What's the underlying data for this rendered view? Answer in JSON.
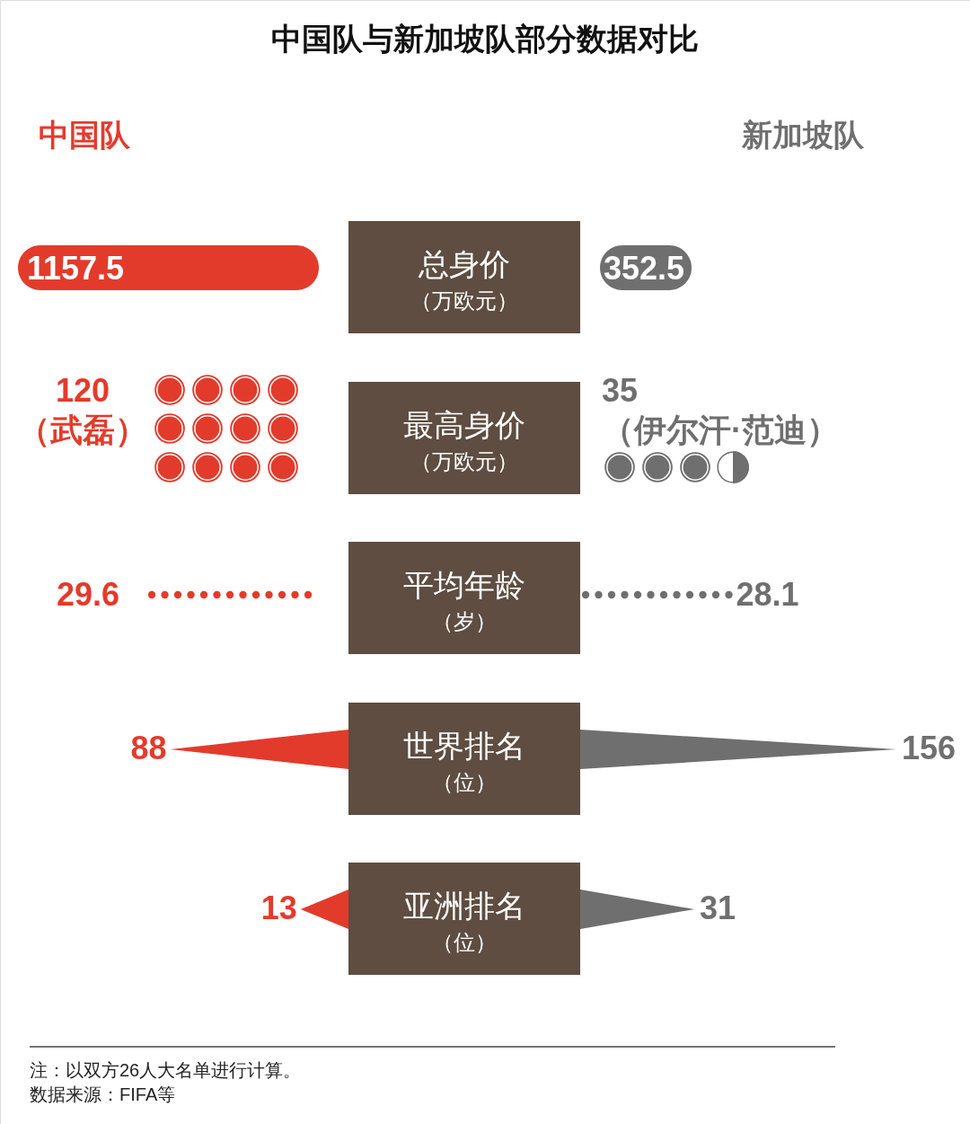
{
  "chart_data": {
    "type": "other",
    "title": "中国队与新加坡队部分数据对比",
    "categories": [
      "总身价（万欧元）",
      "最高身价（万欧元）",
      "平均年龄（岁）",
      "世界排名（位）",
      "亚洲排名（位）"
    ],
    "series": [
      {
        "name": "中国队",
        "color": "#e33b2b",
        "values": [
          1157.5,
          120,
          29.6,
          88,
          13
        ],
        "value_labels": [
          "1157.5",
          "120\n（武磊）",
          "29.6",
          "88",
          "13"
        ]
      },
      {
        "name": "新加坡队",
        "color": "#6f6f6f",
        "values": [
          352.5,
          35,
          28.1,
          156,
          31
        ],
        "value_labels": [
          "352.5",
          "35\n（伊尔汗·范迪）",
          "28.1",
          "156",
          "31"
        ]
      }
    ],
    "annotations": [
      "注：以双方26人大名单进行计算。",
      "数据来源：FIFA等"
    ]
  }
}
